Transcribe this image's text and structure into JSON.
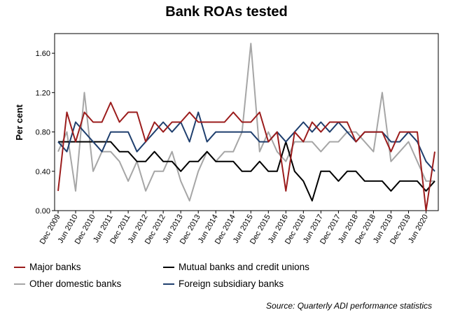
{
  "chart_data": {
    "type": "line",
    "title": "Bank ROAs tested",
    "ylabel": "Per cent",
    "xlabel": "",
    "ylim": [
      0,
      1.8
    ],
    "yticks": [
      "0.00",
      "0.40",
      "0.80",
      "1.20",
      "1.60"
    ],
    "ytick_values": [
      0,
      0.4,
      0.8,
      1.2,
      1.6
    ],
    "grid": false,
    "x_tick_labels": [
      "Dec 2009",
      "Jun 2010",
      "Dec 2010",
      "Jun 2011",
      "Dec 2011",
      "Jun 2012",
      "Dec 2012",
      "Jun 2013",
      "Dec 2013",
      "Jun 2014",
      "Dec 2014",
      "Jun 2015",
      "Dec 2015",
      "Jun 2016",
      "Dec 2016",
      "Jun 2017",
      "Dec 2017",
      "Jun 2018",
      "Dec 2018",
      "Jun 2019",
      "Dec 2019",
      "Jun 2020"
    ],
    "x_tick_indices": [
      0,
      2,
      4,
      6,
      8,
      10,
      12,
      14,
      16,
      18,
      20,
      22,
      24,
      26,
      28,
      30,
      32,
      34,
      36,
      38,
      40,
      42
    ],
    "n_points": 44,
    "series": [
      {
        "name": "Major banks",
        "color": "#9b1c1c",
        "values": [
          0.2,
          1.0,
          0.7,
          1.0,
          0.9,
          0.9,
          1.1,
          0.9,
          1.0,
          1.0,
          0.7,
          0.9,
          0.8,
          0.9,
          0.9,
          1.0,
          0.9,
          0.9,
          0.9,
          0.9,
          1.0,
          0.9,
          0.9,
          1.0,
          0.7,
          0.8,
          0.2,
          0.8,
          0.7,
          0.9,
          0.8,
          0.9,
          0.9,
          0.9,
          0.7,
          0.8,
          0.8,
          0.8,
          0.6,
          0.8,
          0.8,
          0.8,
          0.0,
          0.6
        ]
      },
      {
        "name": "Mutual banks and credit unions",
        "color": "#000000",
        "values": [
          0.7,
          0.7,
          0.7,
          0.7,
          0.7,
          0.7,
          0.7,
          0.6,
          0.6,
          0.5,
          0.5,
          0.6,
          0.5,
          0.5,
          0.4,
          0.5,
          0.5,
          0.6,
          0.5,
          0.5,
          0.5,
          0.4,
          0.4,
          0.5,
          0.4,
          0.4,
          0.7,
          0.4,
          0.3,
          0.1,
          0.4,
          0.4,
          0.3,
          0.4,
          0.4,
          0.3,
          0.3,
          0.3,
          0.2,
          0.3,
          0.3,
          0.3,
          0.2,
          0.3
        ]
      },
      {
        "name": "Other domestic banks",
        "color": "#a6a6a6",
        "values": [
          0.6,
          0.8,
          0.2,
          1.2,
          0.4,
          0.6,
          0.6,
          0.5,
          0.3,
          0.5,
          0.2,
          0.4,
          0.4,
          0.6,
          0.3,
          0.1,
          0.4,
          0.6,
          0.5,
          0.6,
          0.6,
          0.8,
          1.7,
          0.6,
          0.8,
          0.6,
          0.5,
          0.7,
          0.7,
          0.7,
          0.6,
          0.7,
          0.7,
          0.8,
          0.8,
          0.7,
          0.6,
          1.2,
          0.5,
          0.6,
          0.7,
          0.5,
          0.3,
          0.3
        ]
      },
      {
        "name": "Foreign subsidiary banks",
        "color": "#1f3f6e",
        "values": [
          0.7,
          0.6,
          0.9,
          0.8,
          0.7,
          0.6,
          0.8,
          0.8,
          0.8,
          0.6,
          0.7,
          0.8,
          0.9,
          0.8,
          0.9,
          0.7,
          1.0,
          0.7,
          0.8,
          0.8,
          0.8,
          0.8,
          0.8,
          0.7,
          0.7,
          0.8,
          0.7,
          0.8,
          0.9,
          0.8,
          0.9,
          0.8,
          0.9,
          0.8,
          0.7,
          0.8,
          0.8,
          0.8,
          0.7,
          0.7,
          0.8,
          0.7,
          0.5,
          0.4
        ]
      }
    ],
    "legend_position": "bottom-left"
  },
  "source": "Source: Quarterly ADI performance statistics"
}
